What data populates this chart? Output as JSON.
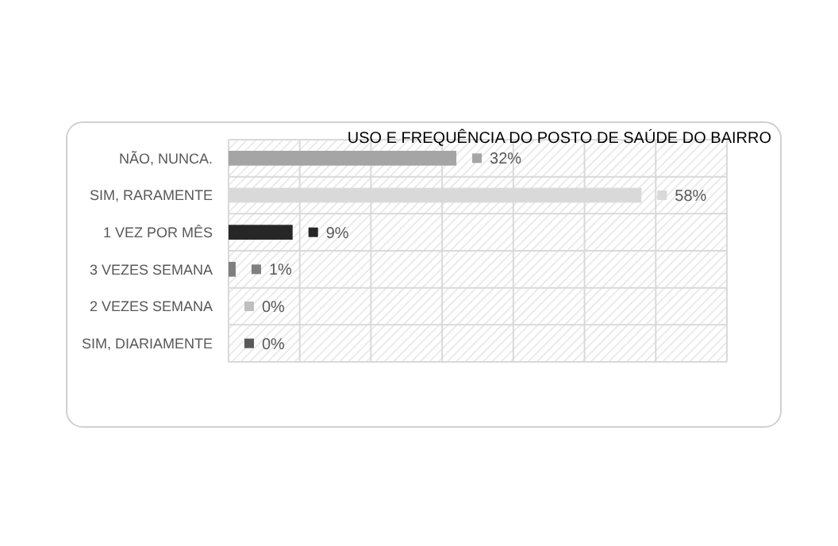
{
  "chart_data": {
    "type": "bar",
    "orientation": "horizontal",
    "title": "USO E FREQUÊNCIA DO POSTO DE SAÚDE DO BAIRRO",
    "categories": [
      "NÃO, NUNCA.",
      "SIM, RARAMENTE",
      "1 VEZ POR MÊS",
      "3 VEZES SEMANA",
      "2 VEZES SEMANA",
      "SIM, DIARIAMENTE"
    ],
    "values": [
      32,
      58,
      9,
      1,
      0,
      0
    ],
    "colors": [
      "#a5a5a5",
      "#d9d9d9",
      "#262626",
      "#7f7f7f",
      "#bfbfbf",
      "#595959"
    ],
    "value_labels": [
      "32%",
      "58%",
      "9%",
      "1%",
      "0%",
      "0%"
    ],
    "xlim": [
      0,
      70
    ],
    "xticks": [
      {
        "value": 0,
        "label": null
      },
      {
        "value": 10,
        "label": null
      },
      {
        "value": 20,
        "label": null
      },
      {
        "value": 30,
        "label": null
      },
      {
        "value": 40,
        "label": null
      },
      {
        "value": 50,
        "label": null
      },
      {
        "value": 60,
        "label": null
      },
      {
        "value": 70,
        "label": null
      }
    ],
    "tick_labels": "y",
    "grid": true
  }
}
